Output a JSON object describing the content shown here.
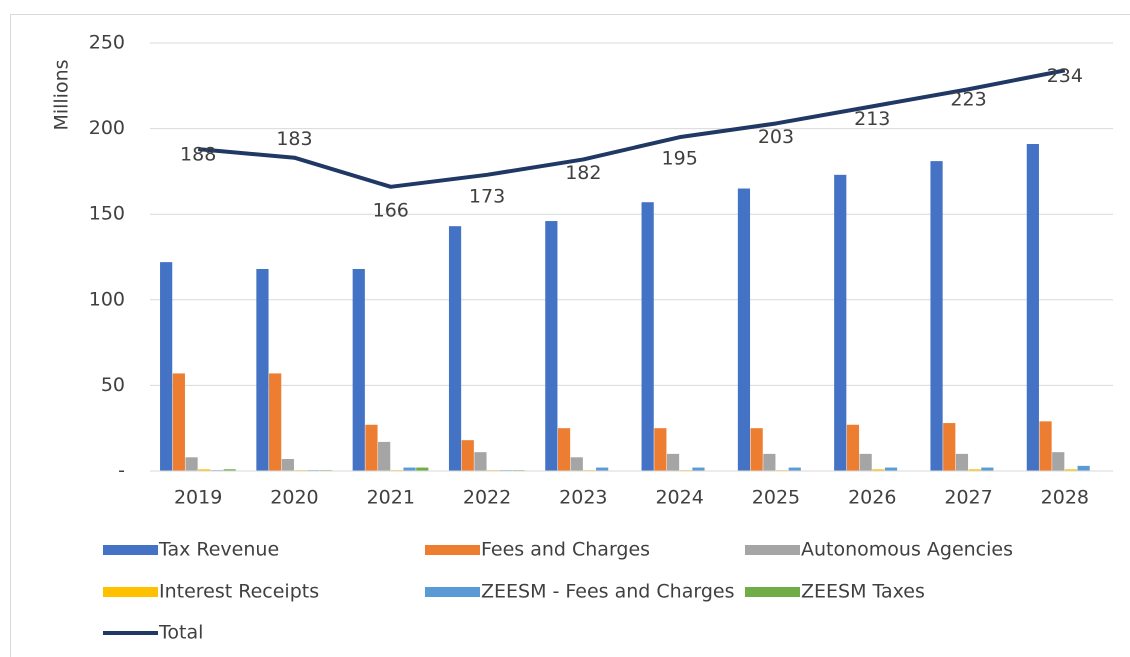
{
  "chart_data": {
    "type": "bar",
    "y_label": "Millions",
    "categories": [
      "2019",
      "2020",
      "2021",
      "2022",
      "2023",
      "2024",
      "2025",
      "2026",
      "2027",
      "2028"
    ],
    "ylim": [
      0,
      250
    ],
    "yticks": [
      {
        "value": 0,
        "label": "-"
      },
      50,
      100,
      150,
      200,
      250
    ],
    "grid": true,
    "series": [
      {
        "name": "Tax Revenue",
        "color": "#4472c4",
        "values": [
          122,
          118,
          118,
          143,
          146,
          157,
          165,
          173,
          181,
          191
        ]
      },
      {
        "name": "Fees and Charges",
        "color": "#ed7d31",
        "values": [
          57,
          57,
          27,
          18,
          25,
          25,
          25,
          27,
          28,
          29
        ]
      },
      {
        "name": "Autonomous Agencies",
        "color": "#a5a5a5",
        "values": [
          8,
          7,
          17,
          11,
          8,
          10,
          10,
          10,
          10,
          11
        ]
      },
      {
        "name": "Interest Receipts",
        "color": "#ffc000",
        "values": [
          1,
          0.5,
          0.5,
          0.5,
          0.5,
          0.5,
          0.5,
          1,
          1,
          1
        ]
      },
      {
        "name": "ZEESM - Fees and Charges",
        "color": "#5b9bd5",
        "values": [
          0.5,
          0.5,
          2,
          0.5,
          2,
          2,
          2,
          2,
          2,
          3
        ]
      },
      {
        "name": "ZEESM Taxes",
        "color": "#70ad47",
        "values": [
          1,
          0.5,
          2,
          0.5,
          0,
          0,
          0,
          0,
          0,
          0
        ]
      },
      {
        "name": "Total",
        "color": "#203864",
        "type": "line",
        "values": [
          188,
          183,
          166,
          173,
          182,
          195,
          203,
          213,
          223,
          234
        ]
      }
    ]
  }
}
